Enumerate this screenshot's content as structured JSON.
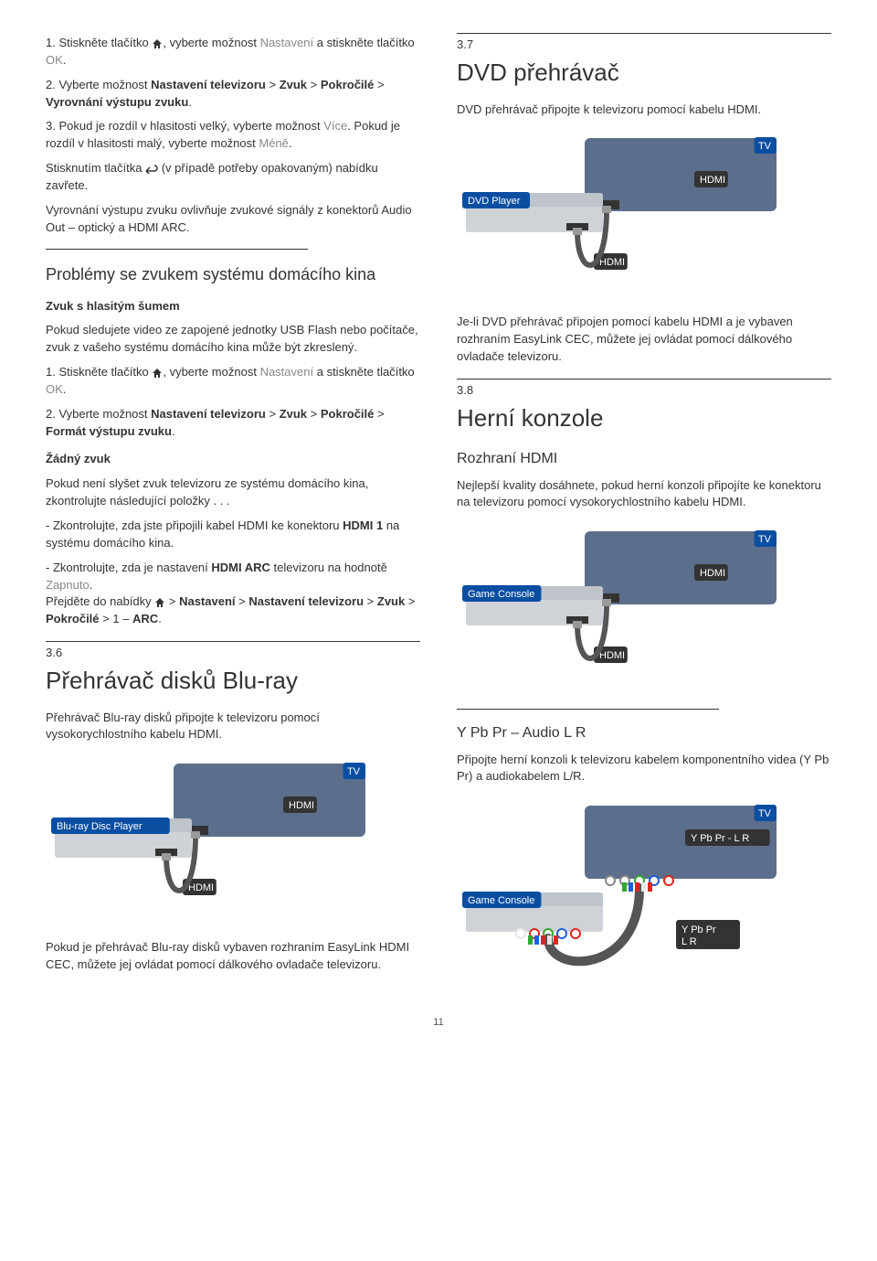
{
  "left": {
    "p1a": "1. Stiskněte tlačítko ",
    "p1b": ", vyberte možnost ",
    "p1c": "Nastavení",
    "p1d": " a stiskněte tlačítko ",
    "p1e": "OK",
    "p1f": ".",
    "p2a": "2. Vyberte možnost ",
    "p2b": "Nastavení televizoru",
    "p2c": " > ",
    "p2d": "Zvuk",
    "p2e": " > ",
    "p2f": "Pokročilé",
    "p2g": " > ",
    "p2h": "Vyrovnání výstupu zvuku",
    "p2i": ".",
    "p3a": "3. Pokud je rozdíl v hlasitosti velký, vyberte možnost ",
    "p3b": "Více",
    "p3c": ". Pokud je rozdíl v hlasitosti malý, vyberte možnost ",
    "p3d": "Méně",
    "p3e": ".",
    "p4a": "Stisknutím tlačítka ",
    "p4b": " (v případě potřeby opakovaným) nabídku zavřete.",
    "p5": "Vyrovnání výstupu zvuku ovlivňuje zvukové signály z konektorů Audio Out – optický a HDMI ARC.",
    "problems_title": "Problémy se zvukem systému domácího kina",
    "noise_title": "Zvuk s hlasitým šumem",
    "noise_p": "Pokud sledujete video ze zapojené jednotky USB Flash nebo počítače, zvuk z vašeho systému domácího kina může být zkreslený.",
    "n1a": "1. Stiskněte tlačítko ",
    "n1b": ", vyberte možnost ",
    "n1c": "Nastavení",
    "n1d": " a stiskněte tlačítko ",
    "n1e": "OK",
    "n1f": ".",
    "n2a": "2. Vyberte možnost ",
    "n2b": "Nastavení televizoru",
    "n2c": " > ",
    "n2d": "Zvuk",
    "n2e": " > ",
    "n2f": "Pokročilé",
    "n2g": " > ",
    "n2h": "Formát výstupu zvuku",
    "n2i": ".",
    "nosound_title": "Žádný zvuk",
    "nosound_p": "Pokud není slyšet zvuk televizoru ze systému domácího kina, zkontrolujte následující položky . . .",
    "chk1a": "- Zkontrolujte, zda jste připojili kabel HDMI ke konektoru ",
    "chk1b": "HDMI 1",
    "chk1c": " na systému domácího kina.",
    "chk2a": "- Zkontrolujte, zda je nastavení ",
    "chk2b": "HDMI ARC",
    "chk2c": " televizoru na hodnotě ",
    "chk2d": "Zapnuto",
    "chk2e": ".",
    "chk3a": "Přejděte do nabídky ",
    "chk3b": " > ",
    "chk3c": "Nastavení",
    "chk3d": " > ",
    "chk3e": "Nastavení televizoru",
    "chk3f": " > ",
    "chk3g": "Zvuk",
    "chk3h": " > ",
    "chk3i": "Pokročilé",
    "chk3j": " > 1 – ",
    "chk3k": "ARC",
    "chk3l": ".",
    "sec36_num": "3.6",
    "sec36_title": "Přehrávač disků Blu-ray",
    "sec36_p1": "Přehrávač Blu-ray disků připojte k televizoru pomocí vysokorychlostního kabelu HDMI.",
    "sec36_p2": "Pokud je přehrávač Blu-ray disků vybaven rozhraním EasyLink HDMI CEC, můžete jej ovládat pomocí dálkového ovladače televizoru."
  },
  "right": {
    "sec37_num": "3.7",
    "sec37_title": "DVD přehrávač",
    "sec37_p1": "DVD přehrávač připojte k televizoru pomocí kabelu HDMI.",
    "sec37_p2": "Je-li DVD přehrávač připojen pomocí kabelu HDMI a je vybaven rozhraním EasyLink CEC, můžete jej ovládat pomocí dálkového ovladače televizoru.",
    "sec38_num": "3.8",
    "sec38_title": "Herní konzole",
    "hdmi_title": "Rozhraní HDMI",
    "hdmi_p": "Nejlepší kvality dosáhnete, pokud herní konzoli připojíte ke konektoru na televizoru pomocí vysokorychlostního kabelu HDMI.",
    "ypbpr_title": "Y Pb Pr – Audio L R",
    "ypbpr_p": "Připojte herní konzoli k televizoru kabelem komponentního videa (Y Pb Pr) a audiokabelem L/R."
  },
  "labels": {
    "tv": "TV",
    "hdmi": "HDMI",
    "dvd": "DVD Player",
    "bluray": "Blu-ray Disc Player",
    "console": "Game Console",
    "ypbpr": "Y Pb Pr - L R",
    "ypbpr2": "Y Pb Pr\nL R"
  },
  "colors": {
    "tv_body": "#5b6e8c",
    "device_body": "#cfd3d8",
    "device_top": "#bfc4cb",
    "label_bg": "#0a4ea2",
    "label_text": "#ffffff",
    "port_dark": "#333333",
    "cable": "#555555",
    "jack_red": "#d9281f",
    "jack_blue": "#1f5fd9",
    "jack_green": "#2fa82f",
    "jack_white": "#e8e8e8",
    "jack_gray": "#888888"
  },
  "page": "11"
}
